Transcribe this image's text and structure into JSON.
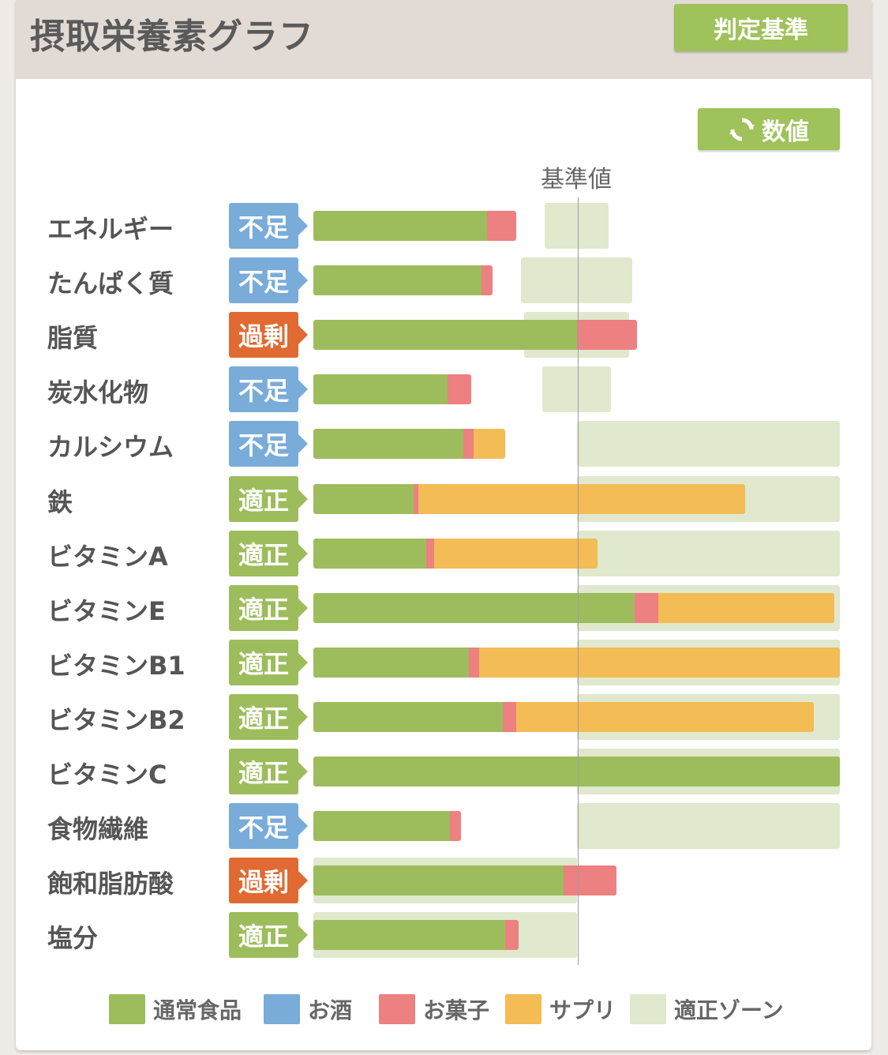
{
  "header": {
    "title": "摂取栄養素グラフ",
    "criteria_button": "判定基準"
  },
  "toolbar": {
    "value_button": "数値",
    "value_icon": "refresh-icon"
  },
  "chart_data": {
    "type": "bar",
    "reference_label": "基準値",
    "colors": {
      "food": "#9dbd5c",
      "alcohol": "#79acd9",
      "sweets": "#ed8080",
      "supplement": "#f3bc55",
      "zone": "#e0e8cd",
      "status_low": "#79acd9",
      "status_high": "#e06a32",
      "status_ok": "#9dbd5c"
    },
    "categories": [
      "エネルギー",
      "たんぱく質",
      "脂質",
      "炭水化物",
      "カルシウム",
      "鉄",
      "ビタミンA",
      "ビタミンE",
      "ビタミンB1",
      "ビタミンB2",
      "ビタミンC",
      "食物繊維",
      "飽和脂肪酸",
      "塩分"
    ],
    "status": [
      "不足",
      "不足",
      "過剰",
      "不足",
      "不足",
      "適正",
      "適正",
      "適正",
      "適正",
      "適正",
      "適正",
      "不足",
      "過剰",
      "適正"
    ],
    "status_kind": [
      "low",
      "low",
      "high",
      "low",
      "low",
      "ok",
      "ok",
      "ok",
      "ok",
      "ok",
      "ok",
      "low",
      "high",
      "ok"
    ],
    "series": [
      {
        "name": "通常食品",
        "key": "food",
        "values": [
          66,
          64,
          100,
          51,
          57,
          38,
          43,
          122,
          59,
          72,
          200,
          52,
          95,
          73
        ]
      },
      {
        "name": "お酒",
        "key": "alcohol",
        "values": [
          0,
          0,
          0,
          0,
          0,
          0,
          0,
          0,
          0,
          0,
          0,
          0,
          0,
          0
        ]
      },
      {
        "name": "お菓子",
        "key": "sweets",
        "values": [
          11,
          4,
          23,
          9,
          4,
          2,
          3,
          9,
          4,
          5,
          0,
          4,
          20,
          5
        ]
      },
      {
        "name": "サプリ",
        "key": "supplement",
        "values": [
          0,
          0,
          0,
          0,
          12,
          124,
          62,
          67,
          137,
          113,
          0,
          0,
          0,
          0
        ]
      }
    ],
    "zone_name": "適正ゾーン",
    "zones": [
      [
        88,
        112
      ],
      [
        79,
        121
      ],
      [
        80,
        120
      ],
      [
        87,
        113
      ],
      [
        100,
        200
      ],
      [
        100,
        200
      ],
      [
        100,
        200
      ],
      [
        100,
        200
      ],
      [
        100,
        200
      ],
      [
        100,
        200
      ],
      [
        100,
        200
      ],
      [
        100,
        200
      ],
      [
        0,
        100
      ],
      [
        0,
        100
      ]
    ],
    "unit": "percent of reference",
    "xlim": [
      0,
      200
    ],
    "legend_position": "bottom"
  }
}
